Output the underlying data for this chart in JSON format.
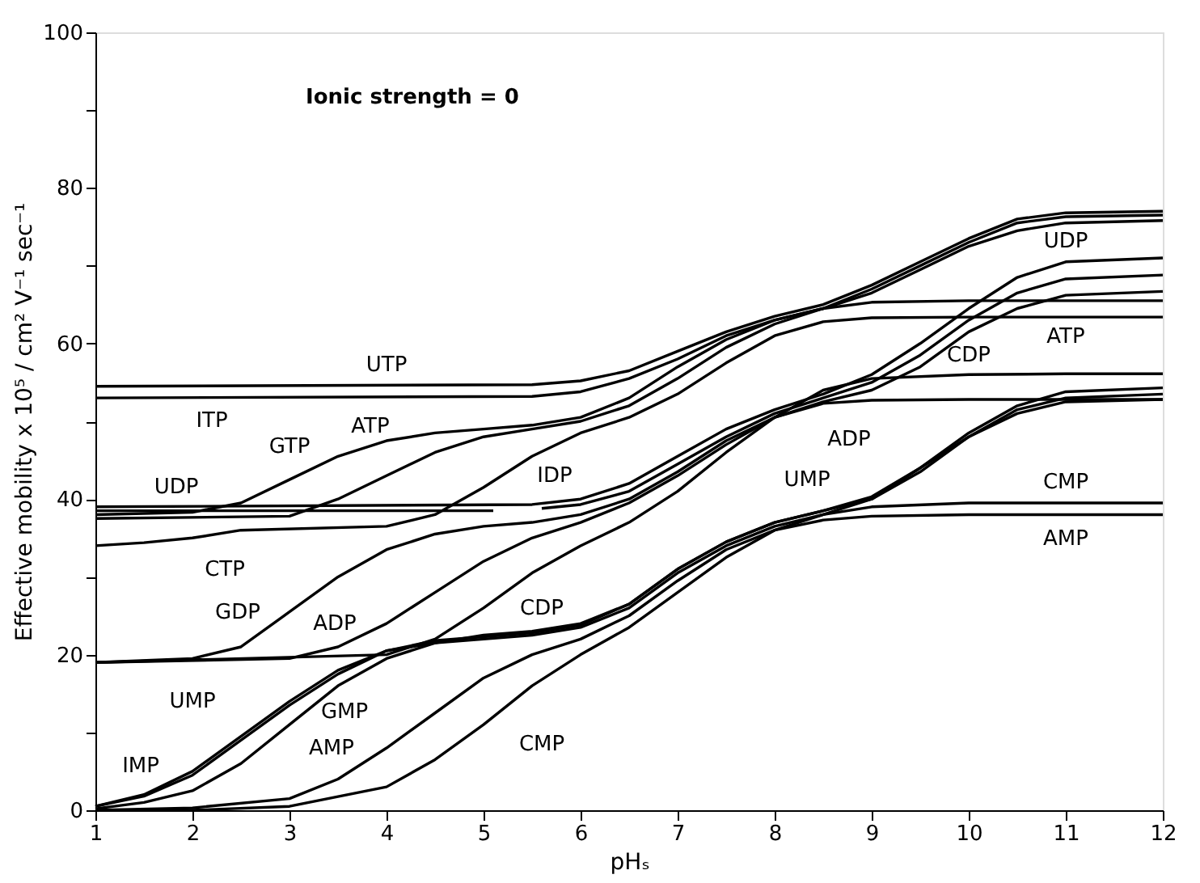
{
  "chart_data": {
    "type": "line",
    "xlabel": "pHₛ",
    "ylabel": "Effective mobility x 10⁵ / cm² V⁻¹ sec⁻¹",
    "xlim": [
      1,
      12
    ],
    "ylim": [
      0,
      100
    ],
    "xticks": [
      1,
      2,
      3,
      4,
      5,
      6,
      7,
      8,
      9,
      10,
      11,
      12
    ],
    "yticks": [
      0,
      {
        "value": 10,
        "label": null
      },
      20,
      {
        "value": 30,
        "label": null
      },
      40,
      {
        "value": 50,
        "label": null
      },
      60,
      {
        "value": 70,
        "label": null
      },
      80,
      {
        "value": 90,
        "label": null
      },
      100
    ],
    "grid": false,
    "marker": "none",
    "line_style": "solid",
    "series": [
      {
        "color": "#000000",
        "x": [
          1,
          5.5,
          6,
          6.5,
          7,
          7.5,
          8,
          8.5,
          9,
          9.5,
          10,
          10.5,
          11,
          12
        ],
        "values": [
          54.5,
          54.7,
          55.2,
          56.5,
          59,
          61.5,
          63.5,
          65,
          67.5,
          70.5,
          73.5,
          76,
          76.8,
          77
        ]
      },
      {
        "color": "#000000",
        "x": [
          1,
          5.5,
          6,
          6.5,
          7,
          7.5,
          8,
          8.5,
          9,
          9.5,
          10,
          10.5,
          11,
          12
        ],
        "values": [
          53,
          53.2,
          53.8,
          55.5,
          58,
          61,
          63,
          64.5,
          67,
          70,
          73,
          75.5,
          76.3,
          76.5
        ]
      },
      {
        "color": "#000000",
        "x": [
          1,
          2,
          2.5,
          3,
          3.5,
          4,
          4.5,
          5,
          5.5,
          6,
          6.5,
          7,
          7.5,
          8,
          8.5,
          9,
          9.5,
          10,
          10.5,
          11,
          12
        ],
        "values": [
          38,
          38.3,
          39.5,
          42.5,
          45.5,
          47.5,
          48.5,
          49,
          49.5,
          50.5,
          53,
          57,
          60.5,
          63,
          64.5,
          66.5,
          69.5,
          72.5,
          74.5,
          75.5,
          75.8
        ]
      },
      {
        "color": "#000000",
        "x": [
          1,
          3,
          3.5,
          4,
          4.5,
          5,
          5.5,
          6,
          6.5,
          7,
          7.5,
          8,
          8.5,
          9,
          10,
          11,
          12
        ],
        "values": [
          37.5,
          37.8,
          40,
          43,
          46,
          48,
          49,
          50,
          52,
          55.5,
          59.5,
          62.5,
          64.5,
          65.3,
          65.5,
          65.5,
          65.5
        ]
      },
      {
        "color": "#000000",
        "x": [
          1,
          1.5,
          2,
          2.5,
          4,
          4.5,
          5,
          5.5,
          6,
          6.5,
          7,
          7.5,
          8,
          8.5,
          9,
          10,
          11,
          12
        ],
        "values": [
          34,
          34.4,
          35,
          36,
          36.5,
          38,
          41.5,
          45.5,
          48.5,
          50.5,
          53.5,
          57.5,
          61,
          62.8,
          63.3,
          63.4,
          63.4,
          63.4
        ]
      },
      {
        "color": "#000000",
        "x": [
          1,
          5.5,
          6,
          6.5,
          7,
          7.5,
          8,
          8.5,
          9,
          9.5,
          10,
          10.5,
          11,
          12
        ],
        "values": [
          39,
          39.3,
          40,
          42,
          45.5,
          49,
          51.5,
          53.5,
          56,
          60,
          64.5,
          68.5,
          70.5,
          71
        ]
      },
      {
        "color": "#000000",
        "x": [
          1,
          5.1,
          5.35,
          5.6,
          6,
          6.5,
          7,
          7.5,
          8,
          8.5,
          9,
          9.5,
          10,
          10.5,
          11,
          12
        ],
        "values": [
          38.5,
          38.5,
          null,
          38.8,
          39.3,
          41,
          44.5,
          48,
          51,
          53,
          55,
          58.5,
          63,
          66.5,
          68.3,
          68.8
        ]
      },
      {
        "color": "#000000",
        "x": [
          1,
          2,
          2.5,
          3,
          3.5,
          4,
          4.5,
          5,
          5.5,
          6,
          6.5,
          7,
          7.5,
          8,
          8.5,
          9,
          9.5,
          10,
          10.5,
          11,
          12
        ],
        "values": [
          19,
          19.5,
          21,
          25.5,
          30,
          33.5,
          35.5,
          36.5,
          37,
          38,
          40,
          43.5,
          47.5,
          50.5,
          52.5,
          54,
          57,
          61.5,
          64.5,
          66.2,
          66.7
        ]
      },
      {
        "color": "#000000",
        "x": [
          1,
          3,
          3.5,
          4,
          4.5,
          5,
          5.5,
          6,
          6.5,
          7,
          7.5,
          8,
          8.5,
          9,
          10,
          11,
          12
        ],
        "values": [
          19,
          19.5,
          21,
          24,
          28,
          32,
          35,
          37,
          39.5,
          43,
          47,
          50.5,
          52.3,
          52.7,
          52.8,
          52.8,
          52.8
        ]
      },
      {
        "color": "#000000",
        "x": [
          1,
          4,
          4.5,
          5,
          5.5,
          6,
          6.5,
          7,
          7.5,
          8,
          8.5,
          9,
          10,
          11,
          12
        ],
        "values": [
          19,
          20,
          22,
          26,
          30.5,
          34,
          37,
          41,
          46,
          50.5,
          54,
          55.5,
          56,
          56.1,
          56.1
        ]
      },
      {
        "color": "#000000",
        "x": [
          1,
          1.5,
          2,
          2.5,
          3,
          3.5,
          4,
          4.5,
          5,
          5.5,
          6,
          6.5,
          7,
          7.5,
          8,
          8.5,
          9,
          9.5,
          10,
          10.5,
          11,
          12
        ],
        "values": [
          0.5,
          2,
          5,
          9.5,
          14,
          18,
          20.5,
          21.5,
          22,
          22.5,
          23.5,
          26,
          30.5,
          34,
          36.5,
          38,
          40,
          44,
          48.5,
          52,
          53.8,
          54.3
        ]
      },
      {
        "color": "#000000",
        "x": [
          1,
          1.5,
          2,
          2.5,
          3,
          3.5,
          4,
          4.5,
          5,
          5.5,
          6,
          6.5,
          7,
          7.5,
          8,
          8.5,
          9,
          9.5,
          10,
          10.5,
          11,
          12
        ],
        "values": [
          0.5,
          1.8,
          4.5,
          9,
          13.5,
          17.5,
          20.5,
          21.8,
          22.3,
          22.8,
          23.8,
          26.5,
          31,
          34.5,
          37,
          38.5,
          40.3,
          44,
          48,
          51,
          52.5,
          52.8
        ]
      },
      {
        "color": "#000000",
        "x": [
          1,
          1.5,
          2,
          2.5,
          3,
          3.5,
          4,
          4.5,
          5,
          5.5,
          6,
          6.5,
          7,
          7.5,
          8,
          8.5,
          9,
          9.5,
          10,
          10.5,
          11,
          12
        ],
        "values": [
          0.2,
          1,
          2.5,
          6,
          11,
          16,
          19.5,
          21.5,
          22.5,
          23,
          24,
          26.5,
          31,
          34.5,
          37,
          38.5,
          40,
          43.5,
          48,
          51.5,
          53,
          53.5
        ]
      },
      {
        "color": "#000000",
        "x": [
          1,
          2,
          3,
          3.5,
          4,
          4.5,
          5,
          5.5,
          6,
          6.5,
          7,
          7.5,
          8,
          8.5,
          9,
          10,
          11,
          12
        ],
        "values": [
          0,
          0.3,
          1.5,
          4,
          8,
          12.5,
          17,
          20,
          22,
          25,
          29.5,
          33.5,
          36,
          37.3,
          37.8,
          38,
          38,
          38
        ]
      },
      {
        "color": "#000000",
        "x": [
          1,
          2,
          3,
          4,
          4.5,
          5,
          5.5,
          6,
          6.5,
          7,
          7.5,
          8,
          8.5,
          9,
          10,
          11,
          12
        ],
        "values": [
          0,
          0,
          0.5,
          3,
          6.5,
          11,
          16,
          20,
          23.5,
          28,
          32.5,
          36,
          38,
          39,
          39.5,
          39.5,
          39.5
        ]
      }
    ],
    "annotations": [
      "Ionic strength = 0",
      {
        "text": "UTP",
        "x": 4,
        "y": 54.6
      },
      {
        "text": "ITP",
        "x": 2.2,
        "y": 53
      },
      {
        "text": "GTP",
        "x": 3.5,
        "y": 45.5
      },
      {
        "text": "ATP",
        "x": 4.5,
        "y": 46
      },
      {
        "text": "IDP",
        "x": 5.1,
        "y": 38.5
      },
      {
        "text": "UDP",
        "x": 1.5,
        "y": 39.1
      },
      {
        "text": "CTP",
        "x": 2.5,
        "y": 36
      },
      {
        "text": "GDP",
        "x": 3,
        "y": 25.5
      },
      {
        "text": "ADP",
        "x": 4,
        "y": 24
      },
      {
        "text": "CDP",
        "x": 5,
        "y": 26
      },
      {
        "text": "UMP",
        "x": 2.5,
        "y": 9.5
      },
      {
        "text": "IMP",
        "x": 2,
        "y": 4.5
      },
      {
        "text": "GMP",
        "x": 3,
        "y": 11
      },
      {
        "text": "AMP",
        "x": 4,
        "y": 8
      },
      {
        "text": "CMP",
        "x": 5,
        "y": 11
      },
      {
        "text": "UDP",
        "x": 11,
        "y": 70.5
      },
      {
        "text": "ATP",
        "x": 11,
        "y": 65.5
      },
      {
        "text": "CDP",
        "x": 10,
        "y": 56
      },
      {
        "text": "ADP",
        "x": 9,
        "y": 52.7
      },
      {
        "text": "UMP",
        "x": 9,
        "y": 40
      },
      {
        "text": "CMP",
        "x": 11,
        "y": 39.5
      },
      {
        "text": "AMP",
        "x": 11,
        "y": 38
      }
    ]
  }
}
